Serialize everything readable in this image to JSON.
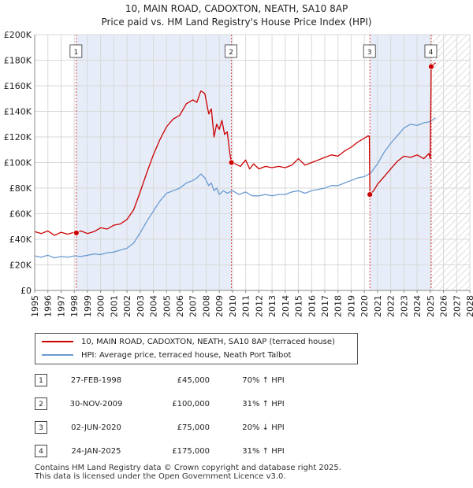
{
  "chart_data": {
    "type": "line",
    "title": "10, MAIN ROAD, CADOXTON, NEATH, SA10 8AP",
    "subtitle": "Price paid vs. HM Land Registry's House Price Index (HPI)",
    "xlabel": "",
    "ylabel": "",
    "xlim": [
      1995,
      2028
    ],
    "ylim": [
      0,
      200000
    ],
    "y_ticks": [
      {
        "value": 0,
        "label": "£0"
      },
      {
        "value": 20000,
        "label": "£20K"
      },
      {
        "value": 40000,
        "label": "£40K"
      },
      {
        "value": 60000,
        "label": "£60K"
      },
      {
        "value": 80000,
        "label": "£80K"
      },
      {
        "value": 100000,
        "label": "£100K"
      },
      {
        "value": 120000,
        "label": "£120K"
      },
      {
        "value": 140000,
        "label": "£140K"
      },
      {
        "value": 160000,
        "label": "£160K"
      },
      {
        "value": 180000,
        "label": "£180K"
      },
      {
        "value": 200000,
        "label": "£200K"
      }
    ],
    "x_ticks": [
      "1995",
      "1996",
      "1997",
      "1998",
      "1999",
      "2000",
      "2001",
      "2002",
      "2003",
      "2004",
      "2005",
      "2006",
      "2007",
      "2008",
      "2009",
      "2010",
      "2011",
      "2012",
      "2013",
      "2014",
      "2015",
      "2016",
      "2017",
      "2018",
      "2019",
      "2020",
      "2021",
      "2022",
      "2023",
      "2024",
      "2025",
      "2026",
      "2027",
      "2028"
    ],
    "shaded_periods": [
      [
        1998.16,
        2009.92
      ],
      [
        2020.42,
        2025.07
      ]
    ],
    "future_hatch_from": 2025.07,
    "grid": true,
    "legend_position": "below",
    "series": [
      {
        "name": "10, MAIN ROAD, CADOXTON, NEATH, SA10 8AP (terraced house)",
        "color": "#cc0000",
        "points": [
          [
            1995.0,
            46000
          ],
          [
            1995.5,
            44500
          ],
          [
            1996.0,
            46500
          ],
          [
            1996.5,
            43000
          ],
          [
            1997.0,
            45500
          ],
          [
            1997.5,
            44000
          ],
          [
            1998.0,
            45500
          ],
          [
            1998.16,
            45000
          ],
          [
            1998.5,
            46500
          ],
          [
            1999.0,
            44500
          ],
          [
            1999.5,
            46000
          ],
          [
            2000.0,
            49000
          ],
          [
            2000.5,
            48000
          ],
          [
            2001.0,
            51000
          ],
          [
            2001.5,
            52000
          ],
          [
            2002.0,
            55500
          ],
          [
            2002.5,
            63000
          ],
          [
            2003.0,
            77000
          ],
          [
            2003.5,
            92000
          ],
          [
            2004.0,
            106000
          ],
          [
            2004.5,
            118000
          ],
          [
            2005.0,
            128000
          ],
          [
            2005.5,
            134000
          ],
          [
            2006.0,
            137000
          ],
          [
            2006.5,
            146000
          ],
          [
            2007.0,
            149000
          ],
          [
            2007.3,
            147000
          ],
          [
            2007.6,
            156000
          ],
          [
            2007.9,
            154000
          ],
          [
            2008.2,
            138000
          ],
          [
            2008.4,
            142000
          ],
          [
            2008.6,
            120000
          ],
          [
            2008.8,
            130000
          ],
          [
            2009.0,
            126000
          ],
          [
            2009.2,
            133000
          ],
          [
            2009.4,
            122000
          ],
          [
            2009.6,
            124000
          ],
          [
            2009.8,
            107000
          ],
          [
            2009.92,
            100000
          ],
          [
            2010.2,
            99000
          ],
          [
            2010.6,
            97000
          ],
          [
            2011.0,
            102000
          ],
          [
            2011.3,
            95000
          ],
          [
            2011.6,
            99000
          ],
          [
            2012.0,
            95000
          ],
          [
            2012.5,
            97000
          ],
          [
            2013.0,
            96000
          ],
          [
            2013.5,
            97000
          ],
          [
            2014.0,
            96000
          ],
          [
            2014.5,
            98000
          ],
          [
            2015.0,
            103000
          ],
          [
            2015.5,
            98000
          ],
          [
            2016.0,
            100000
          ],
          [
            2016.5,
            102000
          ],
          [
            2017.0,
            104000
          ],
          [
            2017.5,
            106000
          ],
          [
            2018.0,
            105000
          ],
          [
            2018.5,
            109000
          ],
          [
            2019.0,
            112000
          ],
          [
            2019.5,
            116000
          ],
          [
            2020.0,
            119000
          ],
          [
            2020.3,
            121000
          ],
          [
            2020.38,
            120000
          ],
          [
            2020.42,
            75000
          ],
          [
            2020.7,
            78000
          ],
          [
            2021.0,
            83000
          ],
          [
            2021.5,
            89000
          ],
          [
            2022.0,
            95000
          ],
          [
            2022.5,
            101000
          ],
          [
            2023.0,
            105000
          ],
          [
            2023.5,
            104000
          ],
          [
            2024.0,
            106000
          ],
          [
            2024.5,
            103000
          ],
          [
            2024.9,
            107000
          ],
          [
            2025.0,
            103000
          ],
          [
            2025.07,
            175000
          ],
          [
            2025.4,
            178000
          ]
        ]
      },
      {
        "name": "HPI: Average price, terraced house, Neath Port Talbot",
        "color": "#6a9bd1",
        "points": [
          [
            1995.0,
            27000
          ],
          [
            1995.5,
            26000
          ],
          [
            1996.0,
            27500
          ],
          [
            1996.5,
            25500
          ],
          [
            1997.0,
            26500
          ],
          [
            1997.5,
            26000
          ],
          [
            1998.0,
            27000
          ],
          [
            1998.5,
            26500
          ],
          [
            1999.0,
            27500
          ],
          [
            1999.5,
            28500
          ],
          [
            2000.0,
            28000
          ],
          [
            2000.5,
            29500
          ],
          [
            2001.0,
            30000
          ],
          [
            2001.5,
            31500
          ],
          [
            2002.0,
            33000
          ],
          [
            2002.5,
            37000
          ],
          [
            2003.0,
            45000
          ],
          [
            2003.5,
            54000
          ],
          [
            2004.0,
            62000
          ],
          [
            2004.5,
            70000
          ],
          [
            2005.0,
            76000
          ],
          [
            2005.5,
            78000
          ],
          [
            2006.0,
            80000
          ],
          [
            2006.5,
            84000
          ],
          [
            2007.0,
            86000
          ],
          [
            2007.3,
            88000
          ],
          [
            2007.6,
            91000
          ],
          [
            2007.9,
            88000
          ],
          [
            2008.2,
            82000
          ],
          [
            2008.4,
            84000
          ],
          [
            2008.6,
            78000
          ],
          [
            2008.8,
            80000
          ],
          [
            2009.0,
            75000
          ],
          [
            2009.3,
            78000
          ],
          [
            2009.6,
            76000
          ],
          [
            2010.0,
            78000
          ],
          [
            2010.5,
            75000
          ],
          [
            2011.0,
            77000
          ],
          [
            2011.5,
            74000
          ],
          [
            2012.0,
            74000
          ],
          [
            2012.5,
            75000
          ],
          [
            2013.0,
            74000
          ],
          [
            2013.5,
            75000
          ],
          [
            2014.0,
            75000
          ],
          [
            2014.5,
            77000
          ],
          [
            2015.0,
            78000
          ],
          [
            2015.5,
            76000
          ],
          [
            2016.0,
            78000
          ],
          [
            2016.5,
            79000
          ],
          [
            2017.0,
            80000
          ],
          [
            2017.5,
            82000
          ],
          [
            2018.0,
            82000
          ],
          [
            2018.5,
            84000
          ],
          [
            2019.0,
            86000
          ],
          [
            2019.5,
            88000
          ],
          [
            2020.0,
            89000
          ],
          [
            2020.5,
            92000
          ],
          [
            2021.0,
            99000
          ],
          [
            2021.5,
            108000
          ],
          [
            2022.0,
            115000
          ],
          [
            2022.5,
            121000
          ],
          [
            2023.0,
            127000
          ],
          [
            2023.5,
            130000
          ],
          [
            2024.0,
            129000
          ],
          [
            2024.5,
            131000
          ],
          [
            2025.0,
            132000
          ],
          [
            2025.4,
            135000
          ]
        ]
      }
    ],
    "transactions": [
      {
        "num": "1",
        "x": 1998.16,
        "price": 45000
      },
      {
        "num": "2",
        "x": 2009.92,
        "price": 100000
      },
      {
        "num": "3",
        "x": 2020.42,
        "price": 75000
      },
      {
        "num": "4",
        "x": 2025.07,
        "price": 175000
      }
    ]
  },
  "legend": {
    "property_label": "10, MAIN ROAD, CADOXTON, NEATH, SA10 8AP (terraced house)",
    "hpi_label": "HPI: Average price, terraced house, Neath Port Talbot"
  },
  "transactions_table": [
    {
      "num": "1",
      "date": "27-FEB-1998",
      "price": "£45,000",
      "hpi": "70% ↑ HPI"
    },
    {
      "num": "2",
      "date": "30-NOV-2009",
      "price": "£100,000",
      "hpi": "31% ↑ HPI"
    },
    {
      "num": "3",
      "date": "02-JUN-2020",
      "price": "£75,000",
      "hpi": "20% ↓ HPI"
    },
    {
      "num": "4",
      "date": "24-JAN-2025",
      "price": "£175,000",
      "hpi": "31% ↑ HPI"
    }
  ],
  "footer": {
    "line1": "Contains HM Land Registry data © Crown copyright and database right 2025.",
    "line2": "This data is licensed under the Open Government Licence v3.0."
  }
}
